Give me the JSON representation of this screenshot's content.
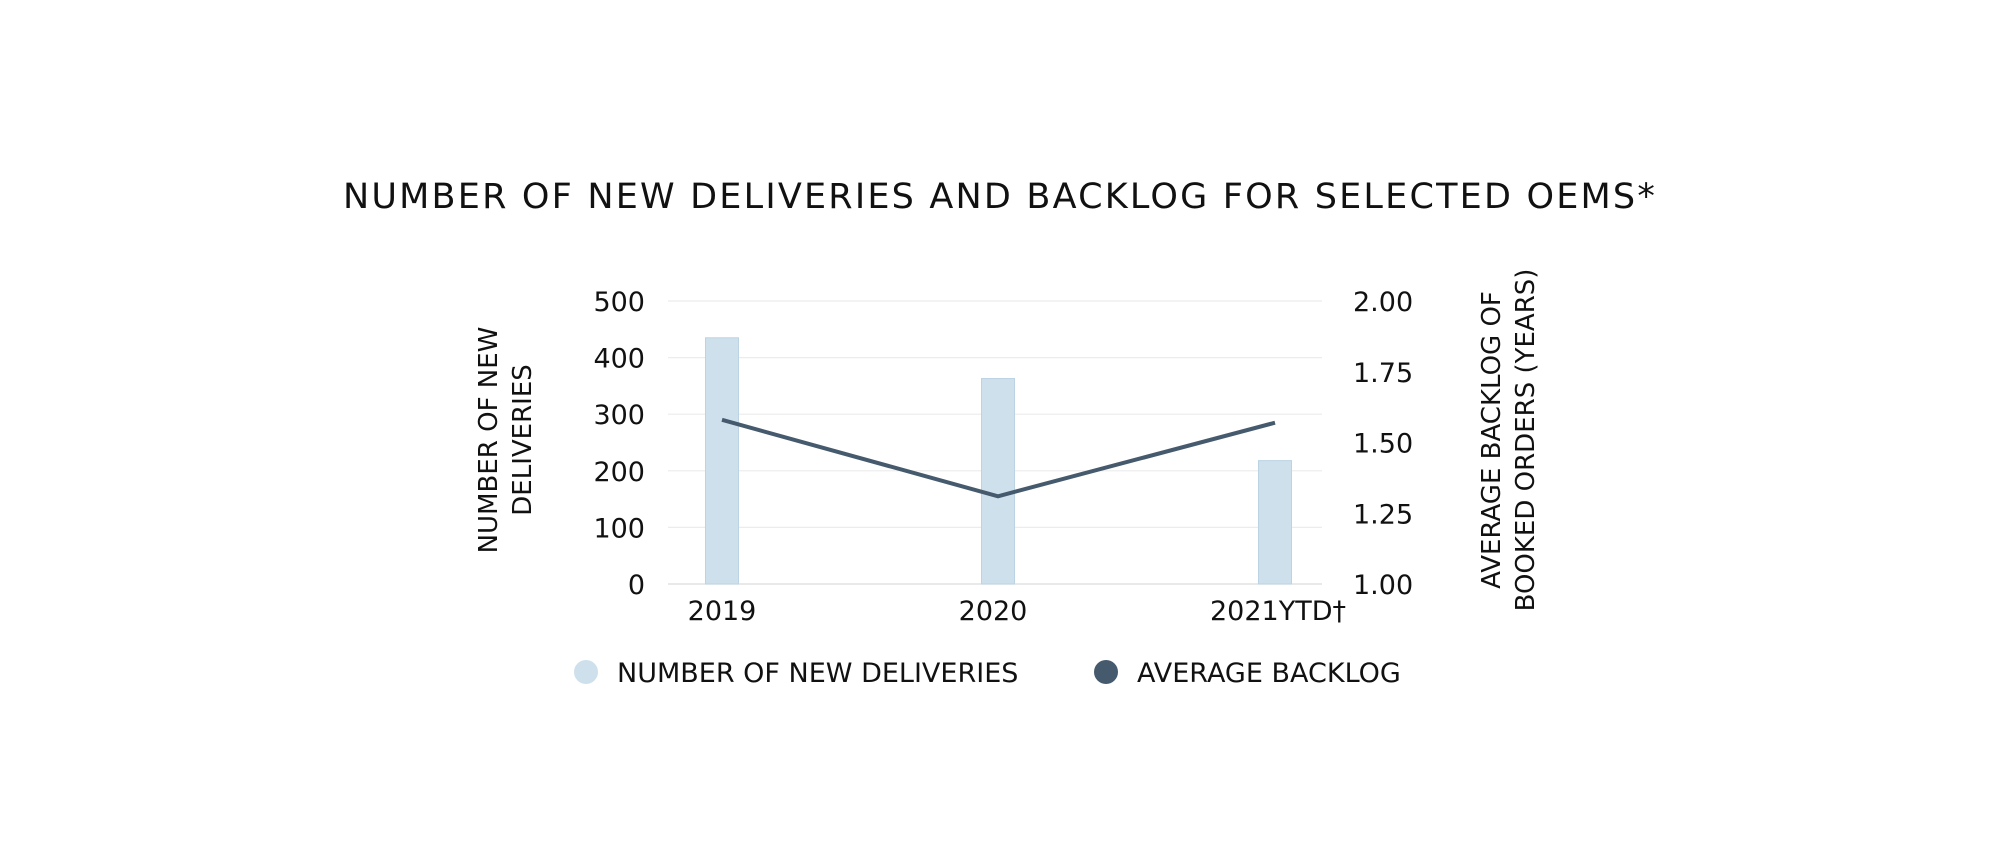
{
  "chart_data": {
    "type": "bar",
    "title": "NUMBER OF NEW DELIVERIES AND BACKLOG FOR SELECTED OEMS*",
    "categories": [
      "2019",
      "2020",
      "2021YTD†"
    ],
    "series": [
      {
        "name": "NUMBER OF NEW DELIVERIES",
        "type": "bar",
        "axis": "left",
        "values": [
          435,
          363,
          218
        ],
        "color": "#cde0ec"
      },
      {
        "name": "AVERAGE BACKLOG",
        "type": "line",
        "axis": "right",
        "values": [
          1.58,
          1.31,
          1.57
        ],
        "color": "#465a6e"
      }
    ],
    "y_left": {
      "label_lines": [
        "NUMBER OF NEW",
        "DELIVERIES"
      ],
      "ylim": [
        0,
        500
      ],
      "ticks": [
        "0",
        "100",
        "200",
        "300",
        "400",
        "500"
      ]
    },
    "y_right": {
      "label_lines": [
        "AVERAGE BACKLOG OF",
        "BOOKED ORDERS (YEARS)"
      ],
      "ylim": [
        1.0,
        2.0
      ],
      "ticks": [
        "1.00",
        "1.25",
        "1.50",
        "1.75",
        "2.00"
      ]
    },
    "grid": true,
    "legend_position": "bottom"
  }
}
